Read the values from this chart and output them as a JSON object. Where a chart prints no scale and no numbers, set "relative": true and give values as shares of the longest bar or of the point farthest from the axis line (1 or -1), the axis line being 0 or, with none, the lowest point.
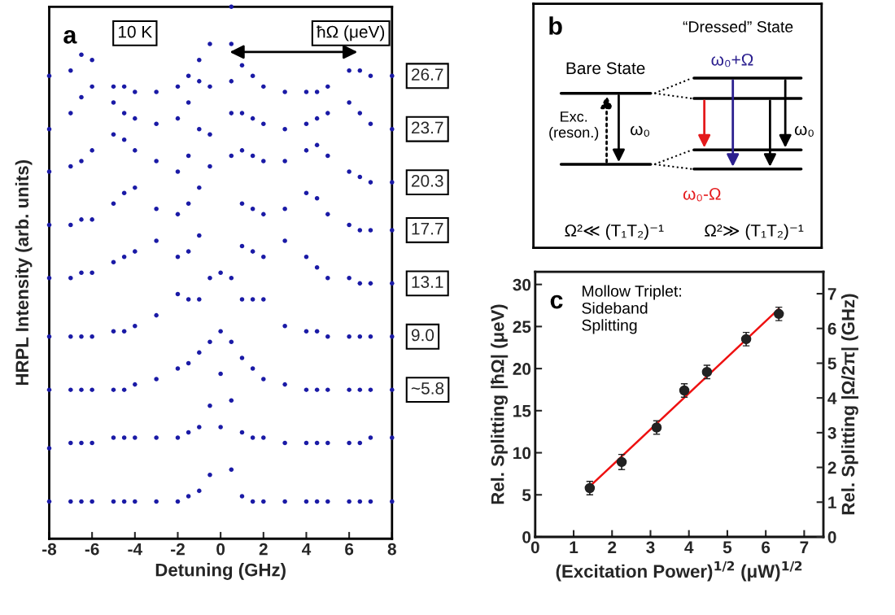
{
  "chart_data": [
    {
      "type": "scatter",
      "xlabel": "Detuning (GHz)",
      "ylabel": "HRPL Intensity (arb. units)",
      "relative": true,
      "tick_labels": "x",
      "marker": "circle",
      "xlim": [
        -8,
        8
      ],
      "xticks": [
        -8,
        -6,
        -4,
        -2,
        0,
        2,
        4,
        6,
        8
      ],
      "annotations": [
        "a",
        "10 K",
        "ħΩ (μeV)"
      ],
      "x": [
        -8,
        -7,
        -6.5,
        -6,
        -5,
        -4.5,
        -4,
        -3,
        -2,
        -1.5,
        -1,
        -0.5,
        0,
        0.5,
        1,
        1.5,
        2,
        3,
        4,
        4.5,
        5,
        6,
        6.5,
        7,
        8
      ],
      "series": [
        {
          "name": "26.7",
          "color": "#1a1aa6",
          "values": [
            0.87,
            0.88,
            0.91,
            0.9,
            0.85,
            0.85,
            0.84,
            0.84,
            0.85,
            0.87,
            0.9,
            null,
            null,
            1.0,
            0.89,
            0.87,
            0.85,
            0.84,
            0.84,
            0.84,
            0.85,
            0.88,
            0.88,
            0.87,
            0.87
          ]
        },
        {
          "name": "23.7",
          "color": "#1a1aa6",
          "values": [
            0.77,
            0.8,
            0.83,
            0.85,
            0.82,
            0.8,
            0.79,
            0.78,
            0.79,
            0.82,
            0.86,
            0.93,
            null,
            0.93,
            0.8,
            0.79,
            0.78,
            0.77,
            0.78,
            0.79,
            0.8,
            0.82,
            0.8,
            0.78,
            0.77
          ]
        },
        {
          "name": "20.3",
          "color": "#1a1aa6",
          "values": [
            0.69,
            0.7,
            0.71,
            0.73,
            0.76,
            0.75,
            0.73,
            0.71,
            0.69,
            0.72,
            0.77,
            0.85,
            null,
            0.86,
            0.73,
            0.72,
            0.71,
            0.71,
            0.73,
            0.74,
            0.72,
            0.69,
            0.68,
            0.67,
            0.67
          ]
        },
        {
          "name": "17.7",
          "color": "#1a1aa6",
          "values": [
            0.59,
            0.59,
            0.6,
            0.6,
            0.63,
            0.65,
            0.66,
            0.62,
            0.61,
            0.63,
            0.66,
            0.76,
            null,
            0.8,
            0.63,
            0.62,
            0.61,
            0.62,
            0.65,
            0.64,
            0.61,
            0.59,
            0.58,
            0.58,
            0.58
          ]
        },
        {
          "name": "13.1",
          "color": "#1a1aa6",
          "values": [
            0.49,
            0.49,
            0.5,
            0.5,
            0.52,
            0.53,
            0.54,
            0.56,
            0.53,
            0.54,
            0.57,
            0.7,
            null,
            0.72,
            0.55,
            0.54,
            0.53,
            0.56,
            0.53,
            0.51,
            0.49,
            0.49,
            0.48,
            0.48,
            0.48
          ]
        },
        {
          "name": "9.0",
          "color": "#1a1aa6",
          "values": [
            0.38,
            0.38,
            0.38,
            0.38,
            0.39,
            0.39,
            0.4,
            0.42,
            0.46,
            0.45,
            0.45,
            0.49,
            0.5,
            0.49,
            0.45,
            0.45,
            0.45,
            0.4,
            0.39,
            0.39,
            0.38,
            0.38,
            0.38,
            0.38,
            0.38
          ]
        },
        {
          "name": "~5.8",
          "color": "#1a1aa6",
          "values": [
            0.28,
            0.28,
            0.28,
            0.28,
            0.28,
            0.28,
            0.29,
            0.3,
            0.32,
            0.33,
            0.35,
            0.37,
            0.39,
            0.37,
            0.34,
            0.32,
            0.3,
            0.29,
            0.28,
            0.28,
            0.28,
            0.28,
            0.28,
            0.28,
            0.28
          ]
        },
        {
          "color": "#1a1aa6",
          "values": [
            0.17,
            0.18,
            0.18,
            0.18,
            0.19,
            0.19,
            0.19,
            0.19,
            0.19,
            0.2,
            0.21,
            0.25,
            0.31,
            0.26,
            0.2,
            0.19,
            0.19,
            0.18,
            0.18,
            0.18,
            0.18,
            0.18,
            0.18,
            0.19,
            0.19
          ]
        },
        {
          "color": "#1a1aa6",
          "values": [
            0.07,
            0.07,
            0.07,
            0.07,
            0.07,
            0.07,
            0.07,
            0.07,
            0.07,
            0.08,
            0.09,
            0.12,
            0.21,
            0.13,
            0.08,
            0.07,
            0.07,
            0.07,
            0.07,
            0.07,
            0.07,
            0.07,
            0.07,
            0.07,
            0.07
          ]
        }
      ]
    },
    {
      "type": "other",
      "annotations": [
        "b",
        "“Dressed” State",
        "Bare State",
        "ω₀+Ω",
        "Exc.\n(reson.)",
        "ω₀",
        "ω₀",
        "ω₀-Ω",
        "Ω²≪ (T₁T₂)⁻¹",
        "Ω²≫ (T₁T₂)⁻¹"
      ]
    },
    {
      "type": "scatter",
      "xlabel": "(Excitation Power)$^{1/2}$ (μW)$^{1/2}$",
      "ylabel": "Rel. Splitting |ħΩ| (μeV)",
      "y2label": "Rel. Splitting |Ω/2π| (GHz)",
      "annotations": [
        "c",
        "Mollow Triplet:\nSideband\nSplitting"
      ],
      "marker": "circle",
      "xlim": [
        0,
        7.5
      ],
      "xticks": [
        0,
        1,
        2,
        3,
        4,
        5,
        6,
        7
      ],
      "ylim": [
        0,
        31.5
      ],
      "yticks": [
        0,
        5,
        10,
        15,
        20,
        25,
        30
      ],
      "y2lim": [
        0,
        7.63
      ],
      "y2ticks": [
        0,
        1,
        2,
        3,
        4,
        5,
        6,
        7
      ],
      "x": [
        1.42,
        2.25,
        3.16,
        3.88,
        4.47,
        5.49,
        6.34
      ],
      "series": [
        {
          "color": "#222222",
          "values": [
            5.8,
            8.9,
            13.0,
            17.4,
            19.6,
            23.5,
            26.5
          ],
          "errors": [
            0.8,
            0.9,
            0.8,
            0.8,
            0.8,
            0.8,
            0.8
          ]
        },
        {
          "type": "line",
          "marker": "none",
          "color": "#ee1111",
          "x": [
            1.42,
            6.34
          ],
          "values": [
            6.0,
            27.1
          ]
        }
      ]
    }
  ]
}
